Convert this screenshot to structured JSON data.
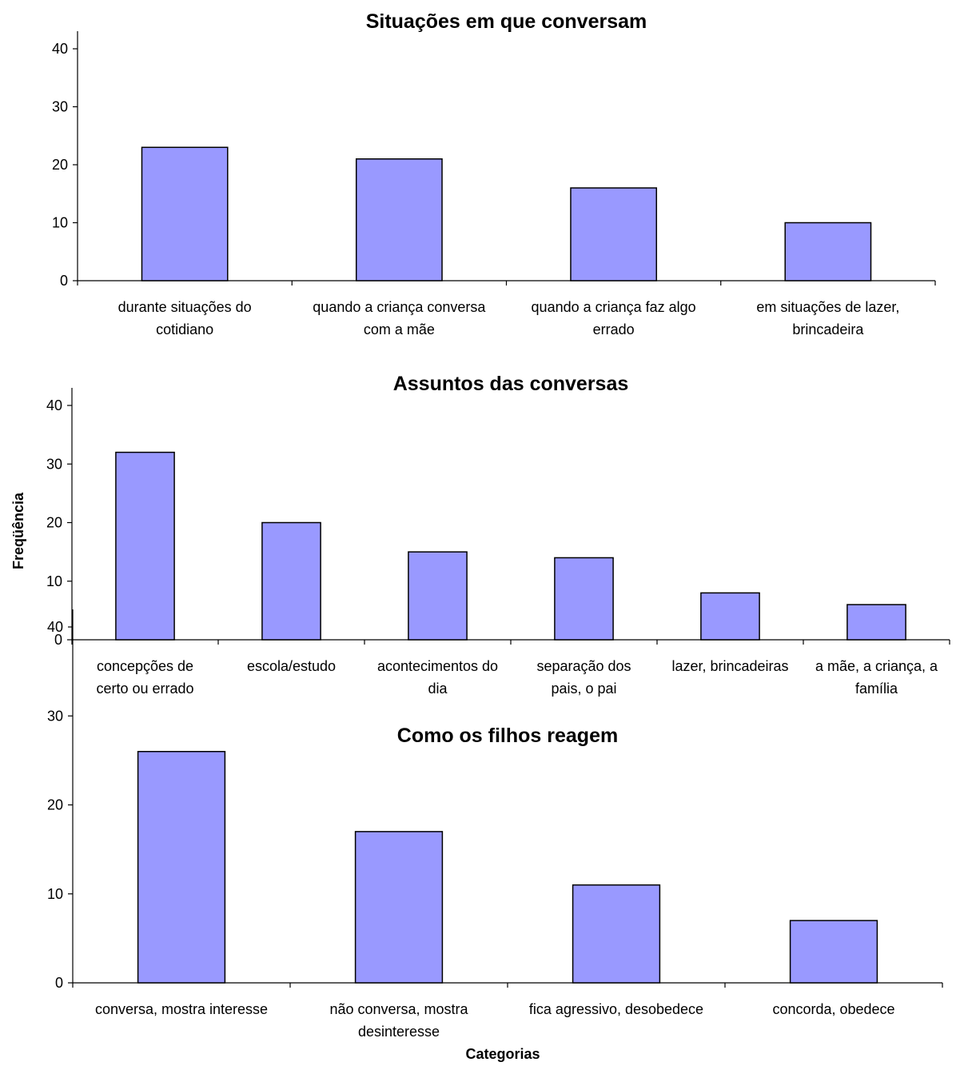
{
  "figure": {
    "ylabel": "Freqüência",
    "xlabel": "Categorias"
  },
  "style": {
    "bar_fill": "#9999ff",
    "bar_stroke": "#000000",
    "axis_color": "#000000"
  },
  "chart_data": [
    {
      "type": "bar",
      "title": "Situações em que conversam",
      "categories": [
        [
          "durante situações do",
          "cotidiano"
        ],
        [
          "quando a criança conversa",
          "com a mãe"
        ],
        [
          "quando a criança faz algo",
          "errado"
        ],
        [
          "em situações de lazer,",
          "brincadeira"
        ]
      ],
      "values": [
        23,
        21,
        16,
        10
      ],
      "ylim": [
        0,
        40
      ],
      "yticks": [
        0,
        10,
        20,
        30,
        40
      ],
      "grid": false,
      "legend": "none"
    },
    {
      "type": "bar",
      "title": "Assuntos das conversas",
      "categories": [
        [
          "concepções de",
          "certo ou errado"
        ],
        [
          "escola/estudo"
        ],
        [
          "acontecimentos do",
          "dia"
        ],
        [
          "separação dos",
          "pais, o pai"
        ],
        [
          "lazer, brincadeiras"
        ],
        [
          "a mãe, a criança, a",
          "família"
        ]
      ],
      "values": [
        32,
        20,
        15,
        14,
        8,
        6
      ],
      "ylim": [
        0,
        40
      ],
      "yticks": [
        0,
        10,
        20,
        30,
        40
      ],
      "grid": false,
      "legend": "none"
    },
    {
      "type": "bar",
      "title": "Como os filhos reagem",
      "categories": [
        [
          "conversa, mostra interesse"
        ],
        [
          "não conversa, mostra",
          "desinteresse"
        ],
        [
          "fica agressivo, desobedece"
        ],
        [
          "concorda, obedece"
        ]
      ],
      "values": [
        26,
        17,
        11,
        7
      ],
      "ylim": [
        0,
        40
      ],
      "yticks": [
        0,
        10,
        20,
        30,
        40
      ],
      "grid": false,
      "legend": "none"
    }
  ]
}
